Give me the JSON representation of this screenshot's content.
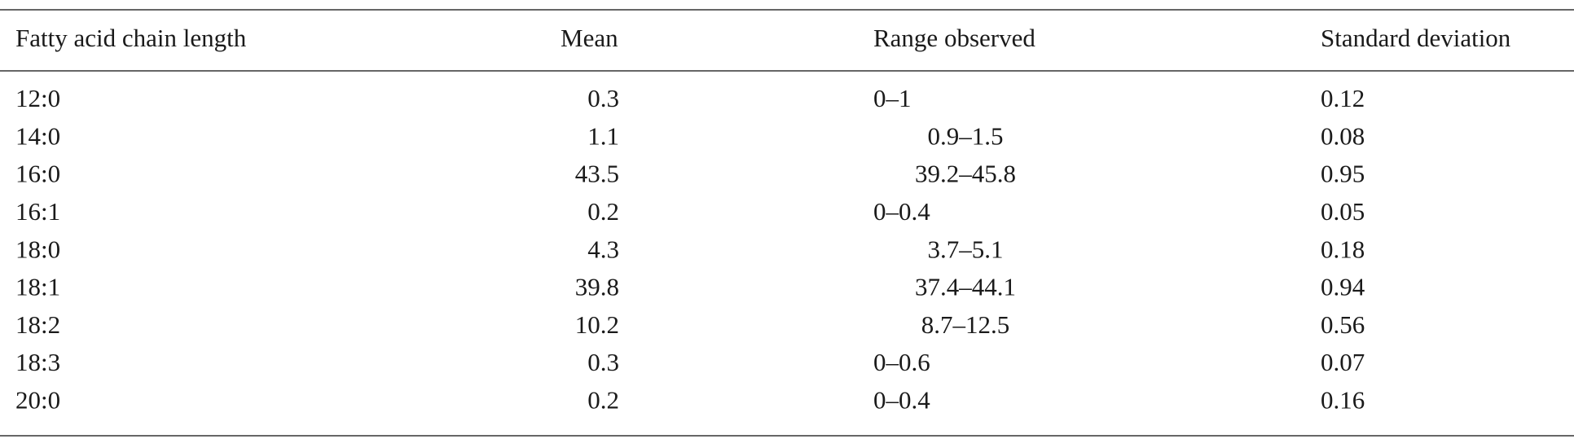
{
  "table": {
    "header": [
      "Fatty acid chain length",
      "Mean",
      "Range observed",
      "Standard deviation"
    ],
    "rows": [
      [
        "12:0",
        "0.3",
        "0–1",
        "0.12"
      ],
      [
        "14:0",
        "1.1",
        "0.9–1.5",
        "0.08"
      ],
      [
        "16:0",
        "43.5",
        "39.2–45.8",
        "0.95"
      ],
      [
        "16:1",
        "0.2",
        "0–0.4",
        "0.05"
      ],
      [
        "18:0",
        "4.3",
        "3.7–5.1",
        "0.18"
      ],
      [
        "18:1",
        "39.8",
        "37.4–44.1",
        "0.94"
      ],
      [
        "18:2",
        "10.2",
        "8.7–12.5",
        "0.56"
      ],
      [
        "18:3",
        "0.3",
        "0–0.6",
        "0.07"
      ],
      [
        "20:0",
        "0.2",
        "0–0.4",
        "0.16"
      ]
    ]
  }
}
